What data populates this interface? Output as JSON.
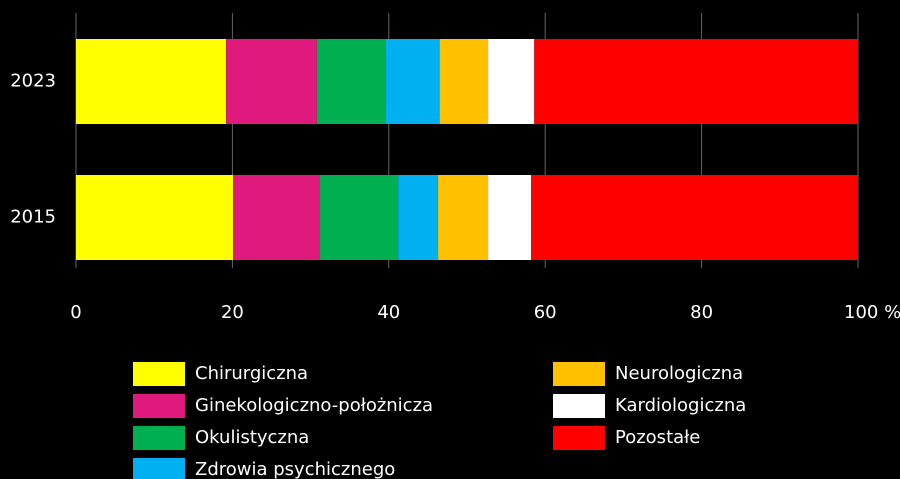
{
  "chart_data": {
    "type": "stacked_barh",
    "categories": [
      "2023",
      "2015"
    ],
    "series": [
      {
        "name": "Chirurgiczna",
        "color": "#ffff00",
        "values": [
          19.2,
          20.1
        ]
      },
      {
        "name": "Ginekologiczno-położnicza",
        "color": "#e0197d",
        "values": [
          11.6,
          11.1
        ]
      },
      {
        "name": "Okulistyczna",
        "color": "#00b050",
        "values": [
          8.8,
          10.0
        ]
      },
      {
        "name": "Zdrowia psychicznego",
        "color": "#00b0f0",
        "values": [
          6.9,
          5.1
        ]
      },
      {
        "name": "Neurologiczna",
        "color": "#ffc000",
        "values": [
          6.2,
          6.4
        ]
      },
      {
        "name": "Kardiologiczna",
        "color": "#ffffff",
        "values": [
          5.9,
          5.5
        ]
      },
      {
        "name": "Pozostałe",
        "color": "#ff0000",
        "values": [
          41.4,
          41.8
        ]
      }
    ],
    "xlim": [
      0,
      100
    ],
    "xticks": [
      0,
      20,
      40,
      60,
      80,
      {
        "value": 100,
        "label": "100 %"
      }
    ],
    "grid": true
  }
}
